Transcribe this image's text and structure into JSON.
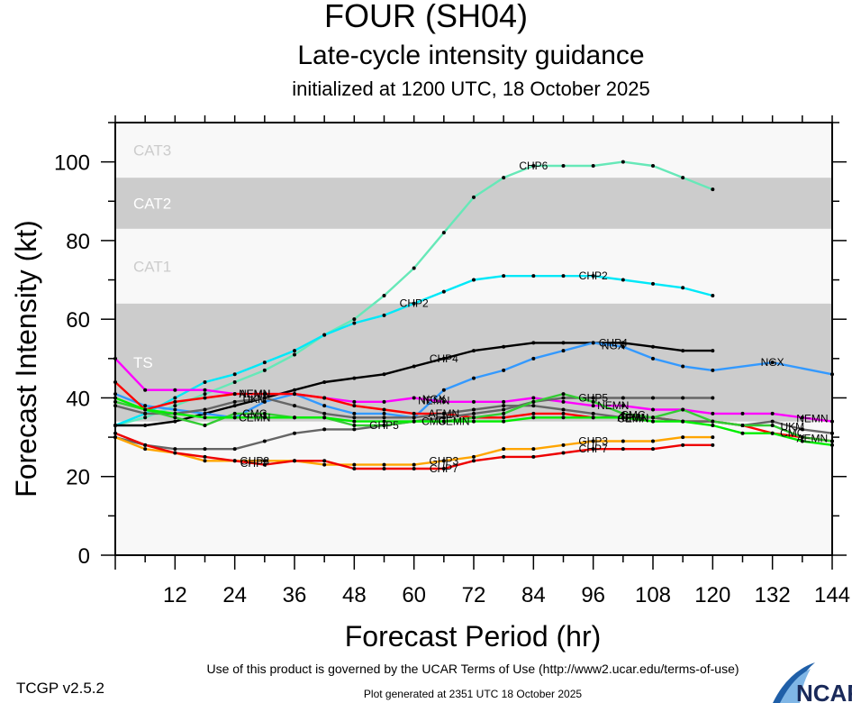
{
  "chart_data": {
    "type": "line",
    "title": "FOUR (SH04)",
    "subtitle": "Late-cycle intensity guidance",
    "subtitle2": "initialized at 1200 UTC, 18 October 2025",
    "xlabel": "Forecast Period (hr)",
    "ylabel": "Forecast Intensity (kt)",
    "xlim": [
      0,
      144
    ],
    "ylim": [
      0,
      110
    ],
    "xticks": [
      12,
      24,
      36,
      48,
      60,
      72,
      84,
      96,
      108,
      120,
      132,
      144
    ],
    "yticks": [
      0,
      20,
      40,
      60,
      80,
      100
    ],
    "bands": [
      {
        "label": "TS",
        "from": 34,
        "to": 64,
        "color": "#cccccc",
        "label_color": "#ffffff"
      },
      {
        "label": "CAT1",
        "from": 64,
        "to": 83,
        "color": "#f8f8f8",
        "label_color": "#cccccc"
      },
      {
        "label": "CAT2",
        "from": 83,
        "to": 96,
        "color": "#cccccc",
        "label_color": "#ffffff"
      },
      {
        "label": "CAT3",
        "from": 96,
        "to": 110,
        "color": "#f8f8f8",
        "label_color": "#cccccc"
      }
    ],
    "below_band_color": "#f8f8f8",
    "series": [
      {
        "name": "CHP6",
        "color": "#66e8b8",
        "x": [
          0,
          6,
          12,
          18,
          24,
          30,
          36,
          42,
          48,
          54,
          60,
          66,
          72,
          78,
          84,
          90,
          96,
          102,
          108,
          114,
          120
        ],
        "values": [
          33,
          35,
          38,
          41,
          44,
          47,
          51,
          56,
          60,
          66,
          73,
          82,
          91,
          96,
          99,
          99,
          99,
          100,
          99,
          96,
          93
        ]
      },
      {
        "name": "CHP2",
        "color": "#00e8f8",
        "x": [
          0,
          6,
          12,
          18,
          24,
          30,
          36,
          42,
          48,
          54,
          60,
          66,
          72,
          78,
          84,
          90,
          96,
          102,
          108,
          114,
          120
        ],
        "values": [
          33,
          36,
          40,
          44,
          46,
          49,
          52,
          56,
          59,
          61,
          64,
          67,
          70,
          71,
          71,
          71,
          71,
          70,
          69,
          68,
          66
        ]
      },
      {
        "name": "CHP4",
        "color": "#000000",
        "x": [
          0,
          6,
          12,
          18,
          24,
          30,
          36,
          42,
          48,
          54,
          60,
          66,
          72,
          78,
          84,
          90,
          96,
          102,
          108,
          114,
          120
        ],
        "values": [
          33,
          33,
          34,
          36,
          38,
          40,
          42,
          44,
          45,
          46,
          48,
          50,
          52,
          53,
          54,
          54,
          54,
          54,
          53,
          52,
          52
        ]
      },
      {
        "name": "NGX",
        "color": "#3399ff",
        "x": [
          0,
          6,
          12,
          18,
          24,
          30,
          36,
          42,
          48,
          54,
          60,
          66,
          72,
          78,
          84,
          90,
          96,
          102,
          108,
          114,
          120,
          132,
          144
        ],
        "values": [
          41,
          38,
          37,
          36,
          35,
          39,
          41,
          38,
          36,
          36,
          35,
          42,
          45,
          47,
          50,
          52,
          54,
          53,
          50,
          48,
          47,
          49,
          46
        ]
      },
      {
        "name": "NEMN",
        "color": "#ff00ff",
        "x": [
          0,
          6,
          12,
          18,
          24,
          30,
          36,
          42,
          48,
          54,
          60,
          66,
          72,
          78,
          84,
          90,
          96,
          102,
          108,
          114,
          120,
          126,
          132,
          138,
          144
        ],
        "values": [
          50,
          42,
          42,
          42,
          41,
          41,
          41,
          40,
          39,
          39,
          40,
          39,
          39,
          39,
          40,
          39,
          38,
          38,
          37,
          37,
          36,
          36,
          36,
          35,
          34
        ]
      },
      {
        "name": "AEMN",
        "color": "#ff0000",
        "x": [
          0,
          6,
          12,
          18,
          24,
          30,
          36,
          42,
          48,
          54,
          60,
          66,
          72,
          78,
          84,
          90,
          96,
          102,
          108,
          114,
          120,
          126,
          132,
          138,
          144
        ],
        "values": [
          44,
          37,
          39,
          40,
          41,
          41,
          41,
          40,
          38,
          37,
          36,
          36,
          35,
          35,
          36,
          36,
          35,
          35,
          35,
          34,
          34,
          33,
          31,
          30,
          29
        ]
      },
      {
        "name": "GHP5",
        "color": "#666666",
        "x": [
          0,
          6,
          12,
          18,
          24,
          30,
          36,
          42,
          48,
          54,
          60,
          66,
          72,
          78,
          84,
          90,
          96,
          102,
          108,
          114,
          120
        ],
        "values": [
          30,
          28,
          27,
          27,
          27,
          29,
          31,
          32,
          32,
          33,
          34,
          35,
          36,
          37,
          39,
          40,
          40,
          40,
          40,
          40,
          40
        ]
      },
      {
        "name": "UKM",
        "color": "#666666",
        "x": [
          0,
          6,
          12,
          18,
          24,
          30,
          36,
          42,
          48,
          54,
          60,
          66,
          72,
          78,
          84,
          90,
          96,
          102,
          108,
          114,
          120,
          126,
          132,
          138,
          144
        ],
        "values": [
          38,
          36,
          36,
          37,
          39,
          40,
          38,
          36,
          35,
          35,
          35,
          36,
          37,
          38,
          38,
          37,
          36,
          35,
          35,
          34,
          34,
          33,
          34,
          32,
          31
        ]
      },
      {
        "name": "CMC",
        "color": "#33cc33",
        "x": [
          0,
          6,
          12,
          18,
          24,
          30,
          36,
          42,
          48,
          54,
          60,
          66,
          72,
          78,
          84,
          90,
          96,
          102,
          108,
          114,
          120,
          126,
          132,
          138,
          144
        ],
        "values": [
          39,
          37,
          35,
          33,
          36,
          36,
          35,
          35,
          33,
          33,
          34,
          34,
          35,
          36,
          39,
          41,
          39,
          36,
          35,
          37,
          34,
          33,
          33,
          30,
          29
        ]
      },
      {
        "name": "CEMN",
        "color": "#00ee00",
        "x": [
          0,
          6,
          12,
          18,
          24,
          30,
          36,
          42,
          48,
          54,
          60,
          66,
          72,
          78,
          84,
          90,
          96,
          102,
          108,
          114,
          120,
          126,
          132,
          138,
          144
        ],
        "values": [
          40,
          37,
          36,
          35,
          35,
          35,
          35,
          35,
          34,
          34,
          34,
          34,
          34,
          34,
          35,
          35,
          35,
          35,
          34,
          34,
          33,
          31,
          31,
          29,
          28
        ]
      },
      {
        "name": "GHP3",
        "color": "#ffa500",
        "x": [
          0,
          6,
          12,
          18,
          24,
          30,
          36,
          42,
          48,
          54,
          60,
          66,
          72,
          78,
          84,
          90,
          96,
          102,
          108,
          114,
          120
        ],
        "values": [
          30,
          27,
          26,
          24,
          24,
          24,
          24,
          23,
          23,
          23,
          23,
          24,
          25,
          27,
          27,
          28,
          29,
          29,
          29,
          30,
          30
        ]
      },
      {
        "name": "CHP7",
        "color": "#ee0000",
        "x": [
          0,
          6,
          12,
          18,
          24,
          30,
          36,
          42,
          48,
          54,
          60,
          66,
          72,
          78,
          84,
          90,
          96,
          102,
          108,
          114,
          120
        ],
        "values": [
          31,
          28,
          26,
          25,
          24,
          23,
          24,
          24,
          22,
          22,
          22,
          22,
          24,
          25,
          25,
          26,
          27,
          27,
          27,
          28,
          28
        ]
      }
    ],
    "labels": [
      {
        "series": "CHP6",
        "text": "CHP6"
      },
      {
        "series": "CHP2",
        "text": "CHP2"
      },
      {
        "series": "CHP4",
        "text": "CHP4"
      },
      {
        "series": "NGX",
        "text": "NGX"
      },
      {
        "series": "NEMN",
        "text": "NEMN"
      },
      {
        "series": "AEMN",
        "text": "AEMN"
      },
      {
        "series": "GHP5",
        "text": "GHP5"
      },
      {
        "series": "UKM",
        "text": "UKM"
      },
      {
        "series": "CMC",
        "text": "CMC"
      },
      {
        "series": "CEMN",
        "text": "CEMN"
      },
      {
        "series": "GHP3",
        "text": "GHP3"
      },
      {
        "series": "CHP7",
        "text": "CHP7"
      }
    ],
    "grid": false,
    "legend": "inline-labels"
  },
  "footer": {
    "terms": "Use of this product is governed by the UCAR Terms of Use (http://www2.ucar.edu/terms-of-use)",
    "generated": "Plot generated at 2351 UTC   18 October 2025",
    "version": "TCGP v2.5.2",
    "logo": "NCAR"
  }
}
